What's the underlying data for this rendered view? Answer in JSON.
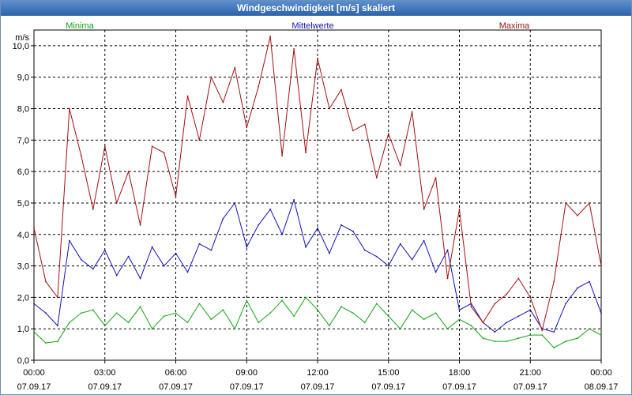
{
  "window": {
    "title": "Windgeschwindigkeit [m/s] skaliert"
  },
  "colors": {
    "minima": "#13a313",
    "mittelwerte": "#1010b8",
    "maxima": "#a01010",
    "grid": "#000000"
  },
  "chart_data": {
    "type": "line",
    "title": "Windgeschwindigkeit [m/s] skaliert",
    "ylabel": "m/s",
    "xlabel": "",
    "ylim": [
      0,
      10.5
    ],
    "xlim": [
      0,
      24
    ],
    "y_ticks": [
      "0,0",
      "1,0",
      "2,0",
      "3,0",
      "4,0",
      "5,0",
      "6,0",
      "7,0",
      "8,0",
      "9,0",
      "10,0"
    ],
    "x_ticks": [
      {
        "time": "00:00",
        "date": "07.09.17"
      },
      {
        "time": "03:00",
        "date": "07.09.17"
      },
      {
        "time": "06:00",
        "date": "07.09.17"
      },
      {
        "time": "09:00",
        "date": "07.09.17"
      },
      {
        "time": "12:00",
        "date": "07.09.17"
      },
      {
        "time": "15:00",
        "date": "07.09.17"
      },
      {
        "time": "18:00",
        "date": "07.09.17"
      },
      {
        "time": "21:00",
        "date": "07.09.17"
      },
      {
        "time": "00:00",
        "date": "08.09.17"
      }
    ],
    "grid": true,
    "legend_position": "top",
    "series": [
      {
        "name": "Minima",
        "color": "#13a313",
        "x": [
          0,
          0.5,
          1,
          1.5,
          2,
          2.5,
          3,
          3.5,
          4,
          4.5,
          5,
          5.5,
          6,
          6.5,
          7,
          7.5,
          8,
          8.5,
          9,
          9.5,
          10,
          10.5,
          11,
          11.5,
          12,
          12.5,
          13,
          13.5,
          14,
          14.5,
          15,
          15.5,
          16,
          16.5,
          17,
          17.5,
          18,
          18.5,
          19,
          19.5,
          20,
          20.5,
          21,
          21.5,
          22,
          22.5,
          23,
          23.5,
          24
        ],
        "values": [
          0.9,
          0.55,
          0.6,
          1.2,
          1.5,
          1.6,
          1.1,
          1.5,
          1.2,
          1.7,
          1.0,
          1.4,
          1.5,
          1.2,
          1.8,
          1.3,
          1.6,
          1.0,
          1.9,
          1.2,
          1.5,
          1.9,
          1.4,
          2.0,
          1.6,
          1.1,
          1.7,
          1.5,
          1.2,
          1.8,
          1.4,
          1.0,
          1.6,
          1.3,
          1.5,
          1.0,
          1.3,
          1.1,
          0.7,
          0.6,
          0.6,
          0.7,
          0.8,
          0.8,
          0.4,
          0.6,
          0.7,
          1.0,
          0.8
        ]
      },
      {
        "name": "Mittelwerte",
        "color": "#1010b8",
        "x": [
          0,
          0.5,
          1,
          1.5,
          2,
          2.5,
          3,
          3.5,
          4,
          4.5,
          5,
          5.5,
          6,
          6.5,
          7,
          7.5,
          8,
          8.5,
          9,
          9.5,
          10,
          10.5,
          11,
          11.5,
          12,
          12.5,
          13,
          13.5,
          14,
          14.5,
          15,
          15.5,
          16,
          16.5,
          17,
          17.5,
          18,
          18.5,
          19,
          19.5,
          20,
          20.5,
          21,
          21.5,
          22,
          22.5,
          23,
          23.5,
          24
        ],
        "values": [
          1.8,
          1.5,
          1.1,
          3.8,
          3.2,
          2.9,
          3.5,
          2.7,
          3.3,
          2.6,
          3.6,
          3.0,
          3.4,
          2.8,
          3.7,
          3.5,
          4.5,
          5.0,
          3.6,
          4.3,
          4.8,
          4.0,
          5.1,
          3.6,
          4.2,
          3.4,
          4.3,
          4.1,
          3.5,
          3.3,
          3.0,
          3.7,
          3.2,
          3.8,
          2.8,
          3.5,
          1.6,
          1.8,
          1.2,
          0.9,
          1.2,
          1.4,
          1.6,
          1.0,
          0.9,
          1.8,
          2.3,
          2.5,
          1.5
        ]
      },
      {
        "name": "Maxima",
        "color": "#a01010",
        "x": [
          0,
          0.5,
          1,
          1.5,
          2,
          2.5,
          3,
          3.5,
          4,
          4.5,
          5,
          5.5,
          6,
          6.5,
          7,
          7.5,
          8,
          8.5,
          9,
          9.5,
          10,
          10.5,
          11,
          11.5,
          12,
          12.5,
          13,
          13.5,
          14,
          14.5,
          15,
          15.5,
          16,
          16.5,
          17,
          17.5,
          18,
          18.5,
          19,
          19.5,
          20,
          20.5,
          21,
          21.5,
          22,
          22.5,
          23,
          23.5,
          24
        ],
        "values": [
          4.2,
          2.5,
          2.0,
          8.0,
          6.5,
          4.8,
          6.8,
          5.0,
          6.0,
          4.3,
          6.8,
          6.6,
          5.2,
          8.4,
          7.0,
          9.0,
          8.2,
          9.3,
          7.4,
          8.7,
          10.3,
          6.5,
          9.9,
          6.6,
          9.6,
          8.0,
          8.6,
          7.3,
          7.5,
          5.8,
          7.2,
          6.2,
          7.9,
          4.8,
          5.8,
          2.6,
          4.8,
          1.7,
          1.2,
          1.8,
          2.1,
          2.6,
          2.0,
          0.95,
          2.5,
          5.0,
          4.6,
          5.0,
          3.0
        ]
      }
    ]
  }
}
